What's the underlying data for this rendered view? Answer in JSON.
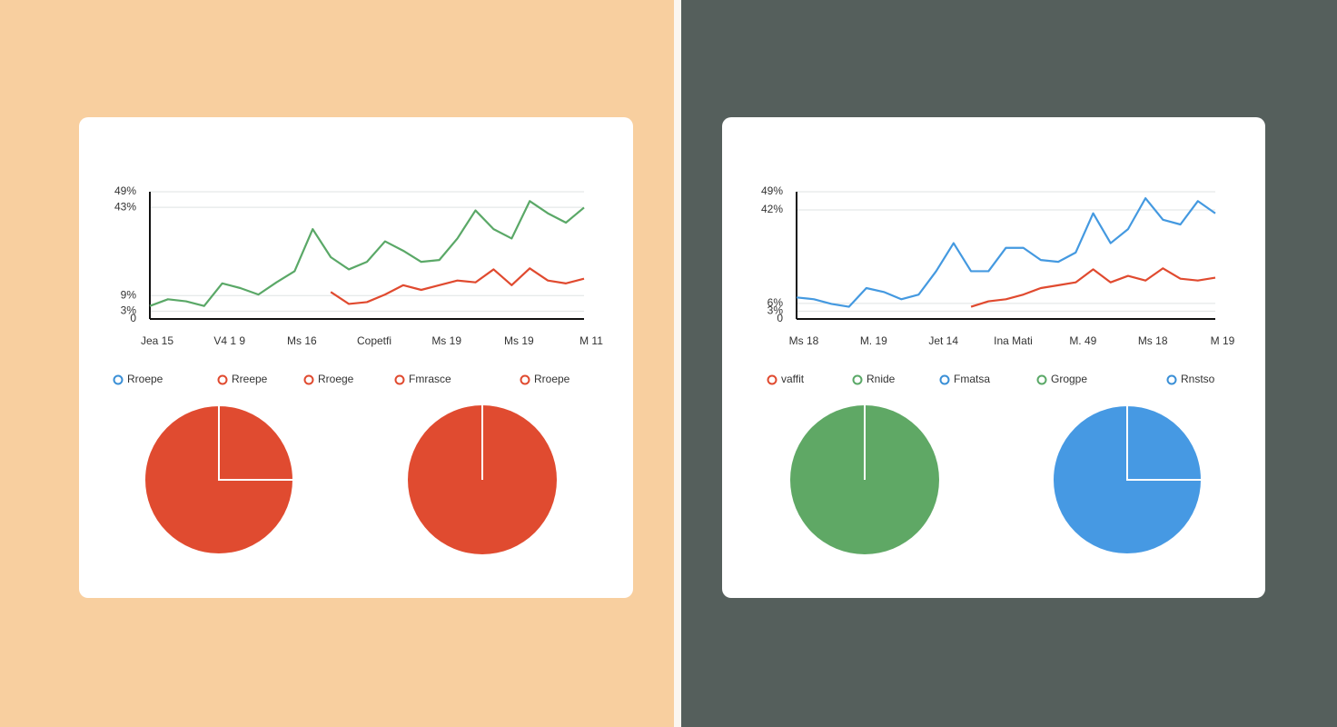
{
  "chart_data": [
    {
      "type": "line",
      "x": [
        0,
        1,
        2,
        3,
        4,
        5,
        6,
        7,
        8,
        9,
        10,
        11,
        12,
        13,
        14,
        15,
        16,
        17,
        18,
        19,
        20,
        21,
        22,
        23,
        24
      ],
      "xlim": [
        0,
        24
      ],
      "xticks": [
        {
          "value": 0,
          "label": "Jea 15"
        },
        {
          "value": 4,
          "label": "V4 1 9"
        },
        {
          "value": 8,
          "label": "Ms 16"
        },
        {
          "value": 12,
          "label": "Copetfi"
        },
        {
          "value": 16,
          "label": "Ms 19"
        },
        {
          "value": 20,
          "label": "Ms 19"
        },
        {
          "value": 24,
          "label": "M 11"
        }
      ],
      "ylim": [
        0,
        49
      ],
      "yticks": [
        {
          "value": 49,
          "label": "49%"
        },
        {
          "value": 43,
          "label": "43%"
        },
        {
          "value": 9,
          "label": "9%"
        },
        {
          "value": 3,
          "label": "3%"
        },
        0
      ],
      "grid": true,
      "series": [
        {
          "color": "#5aa867",
          "values": [
            5.0,
            7.6,
            6.8,
            5.0,
            13.7,
            11.9,
            9.4,
            14.1,
            18.4,
            34.6,
            23.8,
            19.1,
            22.0,
            29.9,
            26.3,
            22.0,
            22.7,
            31.0,
            41.8,
            34.6,
            31.0,
            45.4,
            40.7,
            37.1,
            42.9
          ]
        },
        {
          "color": "#e04a2f",
          "values": [
            null,
            null,
            null,
            null,
            null,
            null,
            null,
            null,
            null,
            null,
            10.4,
            5.8,
            6.5,
            9.4,
            13.0,
            11.2,
            13.0,
            14.8,
            14.1,
            19.1,
            13.0,
            19.5,
            14.8,
            13.7,
            15.5
          ]
        }
      ],
      "legend": [
        {
          "name": "Rroepe",
          "color": "#3a8fd6"
        },
        {
          "name": "Rreepe",
          "color": "#e04a2f"
        },
        {
          "name": "Rroege",
          "color": "#e04a2f"
        },
        {
          "name": "Fmrasce",
          "color": "#e04a2f"
        },
        {
          "name": "Rroepe",
          "color": "#e04a2f"
        }
      ]
    },
    {
      "type": "pie",
      "values": [
        25,
        75
      ],
      "colors": [
        "#e04b30",
        "#e04b30"
      ]
    },
    {
      "type": "pie",
      "values": [
        100
      ],
      "colors": [
        "#e04b30"
      ]
    },
    {
      "type": "line",
      "x": [
        0,
        1,
        2,
        3,
        4,
        5,
        6,
        7,
        8,
        9,
        10,
        11,
        12,
        13,
        14,
        15,
        16,
        17,
        18,
        19,
        20,
        21,
        22,
        23,
        24
      ],
      "xlim": [
        0,
        24
      ],
      "xticks": [
        {
          "value": 0,
          "label": "Ms 18"
        },
        {
          "value": 4,
          "label": "M. 19"
        },
        {
          "value": 8,
          "label": "Jet 14"
        },
        {
          "value": 12,
          "label": "Ina Mati"
        },
        {
          "value": 16,
          "label": "M. 49"
        },
        {
          "value": 20,
          "label": "Ms 18"
        },
        {
          "value": 24,
          "label": "M 19"
        }
      ],
      "ylim": [
        0,
        49
      ],
      "yticks": [
        {
          "value": 49,
          "label": "49%"
        },
        {
          "value": 42,
          "label": "42%"
        },
        {
          "value": 3,
          "label": "3%"
        },
        {
          "value": 6,
          "label": "6%"
        },
        0
      ],
      "grid": true,
      "series": [
        {
          "color": "#4499e0",
          "values": [
            8.3,
            7.6,
            5.8,
            4.7,
            11.9,
            10.4,
            7.6,
            9.4,
            18.4,
            29.2,
            18.4,
            18.4,
            27.4,
            27.4,
            22.7,
            22.0,
            25.6,
            40.7,
            29.2,
            34.6,
            46.5,
            38.2,
            36.4,
            45.4,
            40.7
          ]
        },
        {
          "color": "#e04a2f",
          "values": [
            null,
            null,
            null,
            null,
            null,
            null,
            null,
            null,
            null,
            null,
            4.7,
            6.8,
            7.6,
            9.4,
            11.9,
            13.0,
            14.1,
            19.1,
            14.1,
            16.6,
            14.8,
            19.5,
            15.5,
            14.8,
            15.9
          ]
        }
      ],
      "legend": [
        {
          "name": "vaffit",
          "color": "#e04a2f"
        },
        {
          "name": "Rnide",
          "color": "#5aa867"
        },
        {
          "name": "Fmatsa",
          "color": "#3a8fd6"
        },
        {
          "name": "Grogpe",
          "color": "#5aa867"
        },
        {
          "name": "Rnstso",
          "color": "#3a8fd6"
        }
      ]
    },
    {
      "type": "pie",
      "values": [
        100
      ],
      "colors": [
        "#5fa865"
      ]
    },
    {
      "type": "pie",
      "values": [
        25,
        75
      ],
      "colors": [
        "#4699e3",
        "#4699e3"
      ]
    }
  ]
}
